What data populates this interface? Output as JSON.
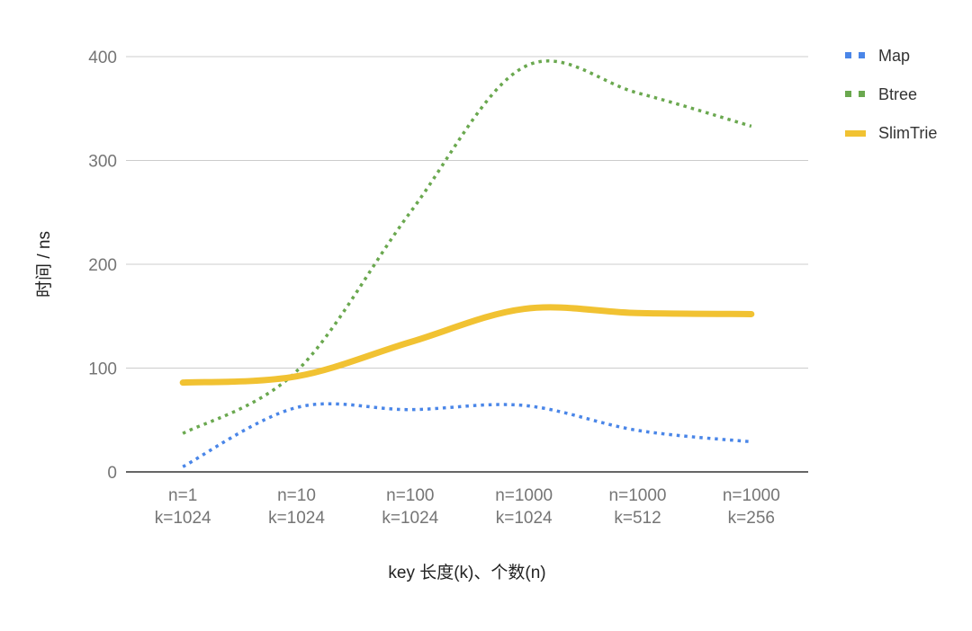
{
  "chart_data": {
    "type": "line",
    "title": "",
    "xlabel": "key 长度(k)、个数(n)",
    "ylabel": "时间 / ns",
    "ylim": [
      0,
      400
    ],
    "yticks": [
      0,
      100,
      200,
      300,
      400
    ],
    "grid": true,
    "legend_position": "right",
    "categories": [
      [
        "n=1",
        "k=1024"
      ],
      [
        "n=10",
        "k=1024"
      ],
      [
        "n=100",
        "k=1024"
      ],
      [
        "n=1000",
        "k=1024"
      ],
      [
        "n=1000",
        "k=512"
      ],
      [
        "n=1000",
        "k=256"
      ]
    ],
    "series": [
      {
        "name": "Map",
        "color": "#4a86e8",
        "style": "dotted",
        "values": [
          5,
          62,
          60,
          64,
          40,
          29
        ]
      },
      {
        "name": "Btree",
        "color": "#6aa84f",
        "style": "dotted",
        "values": [
          37,
          97,
          250,
          390,
          365,
          333
        ]
      },
      {
        "name": "SlimTrie",
        "color": "#f1c232",
        "style": "solid",
        "values": [
          86,
          92,
          125,
          157,
          153,
          152
        ]
      }
    ]
  }
}
